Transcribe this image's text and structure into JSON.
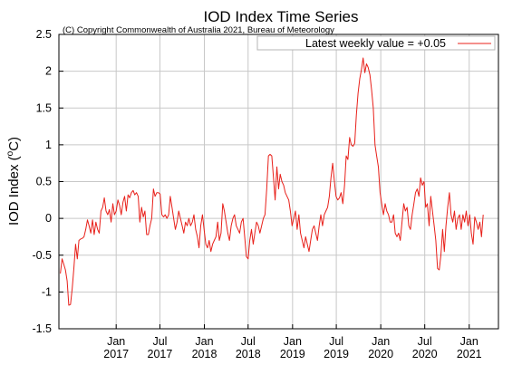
{
  "chart_data": {
    "type": "line",
    "title": "IOD Index Time Series",
    "subtitle": "(C) Copyright Commonwealth of Australia 2021, Bureau of Meteorology",
    "xlabel": "",
    "ylabel": "IOD Index (°C)",
    "ylabel_main": "IOD Index (",
    "ylabel_sup": "o",
    "ylabel_tail": "C)",
    "ylim": [
      -1.5,
      2.5
    ],
    "yticks": [
      -1.5,
      -1,
      -0.5,
      0,
      0.5,
      1,
      1.5,
      2,
      2.5
    ],
    "ytick_labels": [
      "-1.5",
      "-1",
      "-0.5",
      "0",
      "0.5",
      "1",
      "1.5",
      "2",
      "2.5"
    ],
    "xlim": [
      "2016-05-09",
      "2021-05-02"
    ],
    "xticks": [
      {
        "date": "2017-01-01",
        "line1": "Jan",
        "line2": "2017"
      },
      {
        "date": "2017-07-01",
        "line1": "Jul",
        "line2": "2017"
      },
      {
        "date": "2018-01-01",
        "line1": "Jan",
        "line2": "2018"
      },
      {
        "date": "2018-07-01",
        "line1": "Jul",
        "line2": "2018"
      },
      {
        "date": "2019-01-01",
        "line1": "Jan",
        "line2": "2019"
      },
      {
        "date": "2019-07-01",
        "line1": "Jul",
        "line2": "2019"
      },
      {
        "date": "2020-01-01",
        "line1": "Jan",
        "line2": "2020"
      },
      {
        "date": "2020-07-01",
        "line1": "Jul",
        "line2": "2020"
      },
      {
        "date": "2021-01-01",
        "line1": "Jan",
        "line2": "2021"
      }
    ],
    "grid": true,
    "legend_position": "top-right",
    "series": [
      {
        "name": "Latest weekly value = +0.05",
        "color": "#e8201a",
        "points": [
          [
            "2016-05-15",
            -0.75
          ],
          [
            "2016-05-22",
            -0.55
          ],
          [
            "2016-05-29",
            -0.62
          ],
          [
            "2016-06-05",
            -0.7
          ],
          [
            "2016-06-12",
            -0.85
          ],
          [
            "2016-06-19",
            -1.18
          ],
          [
            "2016-06-26",
            -1.17
          ],
          [
            "2016-07-03",
            -0.95
          ],
          [
            "2016-07-10",
            -0.68
          ],
          [
            "2016-07-17",
            -0.35
          ],
          [
            "2016-07-24",
            -0.55
          ],
          [
            "2016-07-31",
            -0.3
          ],
          [
            "2016-08-07",
            -0.28
          ],
          [
            "2016-08-14",
            -0.27
          ],
          [
            "2016-08-21",
            -0.25
          ],
          [
            "2016-08-28",
            -0.15
          ],
          [
            "2016-09-04",
            -0.02
          ],
          [
            "2016-09-11",
            -0.1
          ],
          [
            "2016-09-18",
            -0.2
          ],
          [
            "2016-09-25",
            -0.02
          ],
          [
            "2016-10-02",
            -0.22
          ],
          [
            "2016-10-09",
            -0.05
          ],
          [
            "2016-10-16",
            -0.15
          ],
          [
            "2016-10-23",
            -0.2
          ],
          [
            "2016-10-30",
            0.1
          ],
          [
            "2016-11-06",
            0.15
          ],
          [
            "2016-11-13",
            0.28
          ],
          [
            "2016-11-20",
            0.1
          ],
          [
            "2016-11-27",
            0.05
          ],
          [
            "2016-12-04",
            0.12
          ],
          [
            "2016-12-11",
            -0.05
          ],
          [
            "2016-12-18",
            0.2
          ],
          [
            "2016-12-25",
            0.05
          ],
          [
            "2017-01-01",
            0.1
          ],
          [
            "2017-01-08",
            0.25
          ],
          [
            "2017-01-15",
            0.18
          ],
          [
            "2017-01-22",
            0.05
          ],
          [
            "2017-01-29",
            0.22
          ],
          [
            "2017-02-05",
            0.3
          ],
          [
            "2017-02-12",
            0.1
          ],
          [
            "2017-02-19",
            0.32
          ],
          [
            "2017-02-26",
            0.28
          ],
          [
            "2017-03-05",
            0.35
          ],
          [
            "2017-03-12",
            0.38
          ],
          [
            "2017-03-19",
            0.32
          ],
          [
            "2017-03-26",
            0.35
          ],
          [
            "2017-04-02",
            0.3
          ],
          [
            "2017-04-09",
            -0.05
          ],
          [
            "2017-04-16",
            0.15
          ],
          [
            "2017-04-23",
            0.02
          ],
          [
            "2017-04-30",
            0.1
          ],
          [
            "2017-05-07",
            -0.22
          ],
          [
            "2017-05-14",
            -0.22
          ],
          [
            "2017-05-21",
            -0.1
          ],
          [
            "2017-05-28",
            0.0
          ],
          [
            "2017-06-04",
            0.4
          ],
          [
            "2017-06-11",
            0.3
          ],
          [
            "2017-06-18",
            0.35
          ],
          [
            "2017-06-25",
            0.35
          ],
          [
            "2017-07-02",
            0.33
          ],
          [
            "2017-07-09",
            0.05
          ],
          [
            "2017-07-16",
            0.02
          ],
          [
            "2017-07-23",
            0.05
          ],
          [
            "2017-07-30",
            0.0
          ],
          [
            "2017-08-06",
            0.05
          ],
          [
            "2017-08-13",
            0.3
          ],
          [
            "2017-08-20",
            0.15
          ],
          [
            "2017-08-27",
            0.0
          ],
          [
            "2017-09-03",
            -0.15
          ],
          [
            "2017-09-10",
            -0.05
          ],
          [
            "2017-09-17",
            0.1
          ],
          [
            "2017-09-24",
            0.0
          ],
          [
            "2017-10-01",
            -0.1
          ],
          [
            "2017-10-08",
            -0.2
          ],
          [
            "2017-10-15",
            -0.05
          ],
          [
            "2017-10-22",
            -0.1
          ],
          [
            "2017-10-29",
            0.0
          ],
          [
            "2017-11-05",
            -0.1
          ],
          [
            "2017-11-12",
            -0.05
          ],
          [
            "2017-11-19",
            0.05
          ],
          [
            "2017-11-26",
            -0.15
          ],
          [
            "2017-12-03",
            -0.25
          ],
          [
            "2017-12-10",
            -0.4
          ],
          [
            "2017-12-17",
            -0.1
          ],
          [
            "2017-12-24",
            0.05
          ],
          [
            "2017-12-31",
            -0.15
          ],
          [
            "2018-01-07",
            -0.35
          ],
          [
            "2018-01-14",
            -0.4
          ],
          [
            "2018-01-21",
            -0.3
          ],
          [
            "2018-01-28",
            -0.45
          ],
          [
            "2018-02-04",
            -0.35
          ],
          [
            "2018-02-11",
            -0.3
          ],
          [
            "2018-02-18",
            -0.25
          ],
          [
            "2018-02-25",
            -0.05
          ],
          [
            "2018-03-04",
            -0.3
          ],
          [
            "2018-03-11",
            -0.2
          ],
          [
            "2018-03-18",
            0.2
          ],
          [
            "2018-03-25",
            0.1
          ],
          [
            "2018-04-01",
            -0.05
          ],
          [
            "2018-04-08",
            -0.2
          ],
          [
            "2018-04-15",
            -0.3
          ],
          [
            "2018-04-22",
            -0.1
          ],
          [
            "2018-04-29",
            0.0
          ],
          [
            "2018-05-06",
            0.05
          ],
          [
            "2018-05-13",
            -0.1
          ],
          [
            "2018-05-20",
            -0.15
          ],
          [
            "2018-05-27",
            -0.2
          ],
          [
            "2018-06-03",
            -0.05
          ],
          [
            "2018-06-10",
            0.0
          ],
          [
            "2018-06-17",
            -0.25
          ],
          [
            "2018-06-24",
            -0.52
          ],
          [
            "2018-07-01",
            -0.55
          ],
          [
            "2018-07-08",
            -0.3
          ],
          [
            "2018-07-15",
            -0.15
          ],
          [
            "2018-07-22",
            -0.35
          ],
          [
            "2018-07-29",
            -0.2
          ],
          [
            "2018-08-05",
            -0.05
          ],
          [
            "2018-08-12",
            -0.1
          ],
          [
            "2018-08-19",
            -0.2
          ],
          [
            "2018-08-26",
            -0.1
          ],
          [
            "2018-09-02",
            0.0
          ],
          [
            "2018-09-09",
            0.05
          ],
          [
            "2018-09-16",
            0.4
          ],
          [
            "2018-09-23",
            0.85
          ],
          [
            "2018-09-30",
            0.87
          ],
          [
            "2018-10-07",
            0.85
          ],
          [
            "2018-10-14",
            0.55
          ],
          [
            "2018-10-21",
            0.25
          ],
          [
            "2018-10-28",
            0.7
          ],
          [
            "2018-11-04",
            0.4
          ],
          [
            "2018-11-11",
            0.6
          ],
          [
            "2018-11-18",
            0.5
          ],
          [
            "2018-11-25",
            0.45
          ],
          [
            "2018-12-02",
            0.35
          ],
          [
            "2018-12-09",
            0.3
          ],
          [
            "2018-12-16",
            0.25
          ],
          [
            "2018-12-23",
            0.1
          ],
          [
            "2018-12-30",
            -0.1
          ],
          [
            "2019-01-06",
            0.0
          ],
          [
            "2019-01-13",
            0.1
          ],
          [
            "2019-01-20",
            -0.15
          ],
          [
            "2019-01-27",
            0.05
          ],
          [
            "2019-02-03",
            -0.2
          ],
          [
            "2019-02-10",
            -0.3
          ],
          [
            "2019-02-17",
            -0.4
          ],
          [
            "2019-02-24",
            -0.25
          ],
          [
            "2019-03-03",
            -0.35
          ],
          [
            "2019-03-10",
            -0.45
          ],
          [
            "2019-03-17",
            -0.3
          ],
          [
            "2019-03-24",
            -0.15
          ],
          [
            "2019-03-31",
            -0.1
          ],
          [
            "2019-04-07",
            -0.2
          ],
          [
            "2019-04-14",
            -0.3
          ],
          [
            "2019-04-21",
            -0.1
          ],
          [
            "2019-04-28",
            0.05
          ],
          [
            "2019-05-05",
            -0.1
          ],
          [
            "2019-05-12",
            0.05
          ],
          [
            "2019-05-19",
            0.1
          ],
          [
            "2019-05-26",
            0.15
          ],
          [
            "2019-06-02",
            0.3
          ],
          [
            "2019-06-09",
            0.55
          ],
          [
            "2019-06-16",
            0.75
          ],
          [
            "2019-06-23",
            0.5
          ],
          [
            "2019-06-30",
            0.3
          ],
          [
            "2019-07-07",
            0.25
          ],
          [
            "2019-07-14",
            0.28
          ],
          [
            "2019-07-21",
            0.35
          ],
          [
            "2019-07-28",
            0.2
          ],
          [
            "2019-08-04",
            0.45
          ],
          [
            "2019-08-11",
            0.85
          ],
          [
            "2019-08-18",
            0.8
          ],
          [
            "2019-08-25",
            1.1
          ],
          [
            "2019-09-01",
            1.0
          ],
          [
            "2019-09-08",
            0.98
          ],
          [
            "2019-09-15",
            1.02
          ],
          [
            "2019-09-22",
            1.4
          ],
          [
            "2019-09-29",
            1.7
          ],
          [
            "2019-10-06",
            1.9
          ],
          [
            "2019-10-13",
            2.02
          ],
          [
            "2019-10-20",
            2.18
          ],
          [
            "2019-10-27",
            1.98
          ],
          [
            "2019-11-03",
            2.1
          ],
          [
            "2019-11-10",
            2.05
          ],
          [
            "2019-11-17",
            1.95
          ],
          [
            "2019-11-24",
            1.75
          ],
          [
            "2019-12-01",
            1.5
          ],
          [
            "2019-12-08",
            1.0
          ],
          [
            "2019-12-15",
            0.85
          ],
          [
            "2019-12-22",
            0.7
          ],
          [
            "2019-12-29",
            0.35
          ],
          [
            "2020-01-05",
            0.2
          ],
          [
            "2020-01-12",
            0.05
          ],
          [
            "2020-01-19",
            0.2
          ],
          [
            "2020-01-26",
            0.1
          ],
          [
            "2020-02-02",
            0.05
          ],
          [
            "2020-02-09",
            -0.05
          ],
          [
            "2020-02-16",
            -0.05
          ],
          [
            "2020-02-23",
            0.05
          ],
          [
            "2020-03-01",
            -0.2
          ],
          [
            "2020-03-08",
            -0.25
          ],
          [
            "2020-03-15",
            -0.2
          ],
          [
            "2020-03-22",
            -0.3
          ],
          [
            "2020-03-29",
            -0.05
          ],
          [
            "2020-04-05",
            0.2
          ],
          [
            "2020-04-12",
            0.1
          ],
          [
            "2020-04-19",
            0.15
          ],
          [
            "2020-04-26",
            -0.1
          ],
          [
            "2020-05-03",
            -0.15
          ],
          [
            "2020-05-10",
            0.05
          ],
          [
            "2020-05-17",
            0.2
          ],
          [
            "2020-05-24",
            0.35
          ],
          [
            "2020-05-31",
            0.4
          ],
          [
            "2020-06-07",
            0.3
          ],
          [
            "2020-06-14",
            0.55
          ],
          [
            "2020-06-21",
            0.45
          ],
          [
            "2020-06-28",
            0.5
          ],
          [
            "2020-07-05",
            0.15
          ],
          [
            "2020-07-12",
            0.2
          ],
          [
            "2020-07-19",
            -0.1
          ],
          [
            "2020-07-26",
            0.3
          ],
          [
            "2020-08-02",
            0.1
          ],
          [
            "2020-08-09",
            -0.1
          ],
          [
            "2020-08-16",
            -0.3
          ],
          [
            "2020-08-23",
            -0.68
          ],
          [
            "2020-08-30",
            -0.7
          ],
          [
            "2020-09-06",
            -0.5
          ],
          [
            "2020-09-13",
            -0.15
          ],
          [
            "2020-09-20",
            -0.45
          ],
          [
            "2020-09-27",
            -0.1
          ],
          [
            "2020-10-04",
            0.15
          ],
          [
            "2020-10-11",
            0.35
          ],
          [
            "2020-10-18",
            0.05
          ],
          [
            "2020-10-25",
            -0.05
          ],
          [
            "2020-11-01",
            0.1
          ],
          [
            "2020-11-08",
            -0.15
          ],
          [
            "2020-11-15",
            0.0
          ],
          [
            "2020-11-22",
            0.05
          ],
          [
            "2020-11-29",
            -0.15
          ],
          [
            "2020-12-06",
            0.05
          ],
          [
            "2020-12-13",
            -0.05
          ],
          [
            "2020-12-20",
            0.1
          ],
          [
            "2020-12-27",
            -0.1
          ],
          [
            "2021-01-03",
            0.05
          ],
          [
            "2021-01-10",
            -0.2
          ],
          [
            "2021-01-17",
            -0.35
          ],
          [
            "2021-01-24",
            0.02
          ],
          [
            "2021-01-31",
            -0.05
          ],
          [
            "2021-02-07",
            -0.15
          ],
          [
            "2021-02-14",
            -0.05
          ],
          [
            "2021-02-21",
            -0.25
          ],
          [
            "2021-02-28",
            0.05
          ]
        ]
      }
    ]
  }
}
